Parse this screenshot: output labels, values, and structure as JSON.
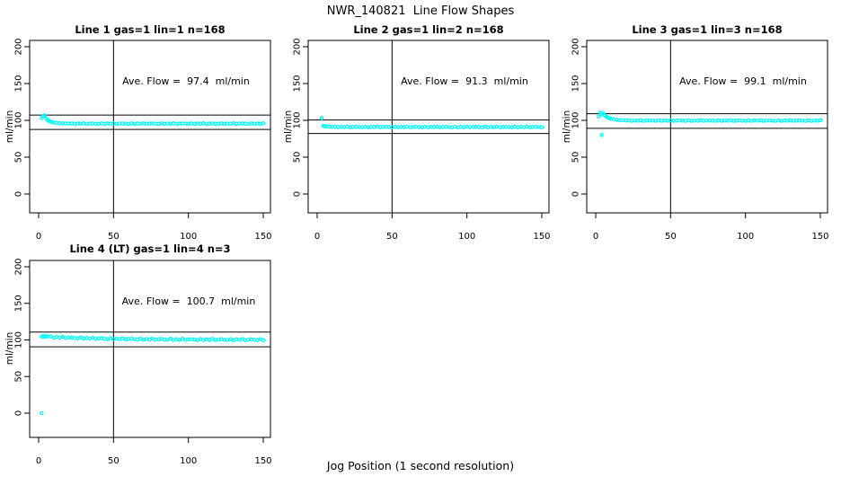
{
  "figure": {
    "title": "NWR_140821  Line Flow Shapes",
    "xlabel": "Jog Position (1 second resolution)",
    "point_color": "#00FFFF",
    "axis_color": "#000000",
    "background": "#FFFFFF"
  },
  "chart_data": [
    {
      "type": "scatter",
      "title": "Line 1 gas=1 lin=1 n=168",
      "annotation": "Ave. Flow =  97.4  ml/min",
      "ave_flow": 97.4,
      "ylabel": "ml/min",
      "vline": 50,
      "hlines": [
        107.1,
        87.7
      ],
      "x_ticks": [
        0,
        50,
        100,
        150
      ],
      "y_ticks": [
        0,
        50,
        100,
        150,
        200
      ],
      "xlim": [
        0,
        150
      ],
      "ylim": [
        0,
        200
      ],
      "points": [
        [
          2,
          103
        ],
        [
          3,
          105.5
        ],
        [
          4,
          106.8
        ],
        [
          5,
          102.5
        ],
        [
          6,
          100.1
        ],
        [
          7,
          99.1
        ],
        [
          8,
          98.3
        ],
        [
          9,
          97.7
        ],
        [
          10,
          97.2
        ],
        [
          12,
          96.6
        ],
        [
          14,
          96.2
        ],
        [
          16,
          96
        ],
        [
          18,
          95.8
        ],
        [
          20,
          95.7
        ],
        [
          22,
          95.9
        ],
        [
          24,
          95.2
        ],
        [
          26,
          95.7
        ],
        [
          28,
          95.4
        ],
        [
          30,
          96
        ],
        [
          32,
          95.3
        ],
        [
          34,
          95.6
        ],
        [
          36,
          95.8
        ],
        [
          38,
          95.5
        ],
        [
          40,
          95.2
        ],
        [
          42,
          95.9
        ],
        [
          44,
          95.2
        ],
        [
          46,
          95.7
        ],
        [
          48,
          95.4
        ],
        [
          50,
          96
        ],
        [
          52,
          95.3
        ],
        [
          54,
          95.6
        ],
        [
          56,
          95.8
        ],
        [
          58,
          95.5
        ],
        [
          60,
          95.2
        ],
        [
          62,
          95.9
        ],
        [
          64,
          95.2
        ],
        [
          66,
          95.7
        ],
        [
          68,
          95.4
        ],
        [
          70,
          96
        ],
        [
          72,
          95.3
        ],
        [
          74,
          95.6
        ],
        [
          76,
          95.8
        ],
        [
          78,
          95.5
        ],
        [
          80,
          95.2
        ],
        [
          82,
          95.9
        ],
        [
          84,
          95.2
        ],
        [
          86,
          95.7
        ],
        [
          88,
          95.4
        ],
        [
          90,
          96
        ],
        [
          92,
          95.3
        ],
        [
          94,
          95.6
        ],
        [
          96,
          95.8
        ],
        [
          98,
          95.5
        ],
        [
          100,
          95.2
        ],
        [
          102,
          95.9
        ],
        [
          104,
          95.2
        ],
        [
          106,
          95.7
        ],
        [
          108,
          95.4
        ],
        [
          110,
          96
        ],
        [
          112,
          95.3
        ],
        [
          114,
          95.6
        ],
        [
          116,
          95.8
        ],
        [
          118,
          95.5
        ],
        [
          120,
          95.2
        ],
        [
          122,
          95.9
        ],
        [
          124,
          95.2
        ],
        [
          126,
          95.7
        ],
        [
          128,
          95.4
        ],
        [
          130,
          96
        ],
        [
          132,
          95.3
        ],
        [
          134,
          95.6
        ],
        [
          136,
          95.8
        ],
        [
          138,
          95.5
        ],
        [
          140,
          95.2
        ],
        [
          142,
          95.9
        ],
        [
          144,
          95.2
        ],
        [
          146,
          95.7
        ],
        [
          148,
          95.4
        ],
        [
          150,
          96
        ]
      ]
    },
    {
      "type": "scatter",
      "title": "Line 2 gas=1 lin=2 n=168",
      "annotation": "Ave. Flow =  91.3  ml/min",
      "ave_flow": 91.3,
      "ylabel": "ml/min",
      "vline": 50,
      "hlines": [
        100.4,
        82.2
      ],
      "x_ticks": [
        0,
        50,
        100,
        150
      ],
      "y_ticks": [
        0,
        50,
        100,
        150,
        200
      ],
      "xlim": [
        0,
        150
      ],
      "ylim": [
        0,
        200
      ],
      "points": [
        [
          3,
          103
        ],
        [
          4,
          92.5
        ],
        [
          5,
          92
        ],
        [
          6,
          91.8
        ],
        [
          8,
          91.4
        ],
        [
          10,
          91.2
        ],
        [
          12,
          91.3
        ],
        [
          14,
          90.6
        ],
        [
          16,
          91.1
        ],
        [
          18,
          90.8
        ],
        [
          20,
          91.4
        ],
        [
          22,
          90.7
        ],
        [
          24,
          91
        ],
        [
          26,
          91.2
        ],
        [
          28,
          90.9
        ],
        [
          30,
          90.6
        ],
        [
          32,
          91.3
        ],
        [
          34,
          90.6
        ],
        [
          36,
          91.1
        ],
        [
          38,
          90.8
        ],
        [
          40,
          91.4
        ],
        [
          42,
          90.7
        ],
        [
          44,
          91
        ],
        [
          46,
          91.2
        ],
        [
          48,
          90.9
        ],
        [
          50,
          90.6
        ],
        [
          52,
          91.3
        ],
        [
          54,
          90.6
        ],
        [
          56,
          91.1
        ],
        [
          58,
          90.8
        ],
        [
          60,
          91.4
        ],
        [
          62,
          90.7
        ],
        [
          64,
          91
        ],
        [
          66,
          91.2
        ],
        [
          68,
          90.9
        ],
        [
          70,
          90.6
        ],
        [
          72,
          91.3
        ],
        [
          74,
          90.6
        ],
        [
          76,
          91.1
        ],
        [
          78,
          90.8
        ],
        [
          80,
          91.4
        ],
        [
          82,
          90.7
        ],
        [
          84,
          91
        ],
        [
          86,
          91.2
        ],
        [
          88,
          90.9
        ],
        [
          90,
          90.6
        ],
        [
          92,
          91.3
        ],
        [
          94,
          90.6
        ],
        [
          96,
          91.1
        ],
        [
          98,
          90.8
        ],
        [
          100,
          91.4
        ],
        [
          102,
          90.7
        ],
        [
          104,
          91
        ],
        [
          106,
          91.2
        ],
        [
          108,
          90.9
        ],
        [
          110,
          90.6
        ],
        [
          112,
          91.3
        ],
        [
          114,
          90.6
        ],
        [
          116,
          91.1
        ],
        [
          118,
          90.8
        ],
        [
          120,
          91.4
        ],
        [
          122,
          90.7
        ],
        [
          124,
          91
        ],
        [
          126,
          91.2
        ],
        [
          128,
          90.9
        ],
        [
          130,
          90.6
        ],
        [
          132,
          91.3
        ],
        [
          134,
          90.6
        ],
        [
          136,
          91.1
        ],
        [
          138,
          90.8
        ],
        [
          140,
          91.4
        ],
        [
          142,
          90.7
        ],
        [
          144,
          91
        ],
        [
          146,
          91.2
        ],
        [
          148,
          90.9
        ],
        [
          150,
          90.6
        ]
      ]
    },
    {
      "type": "scatter",
      "title": "Line 3 gas=1 lin=3 n=168",
      "annotation": "Ave. Flow =  99.1  ml/min",
      "ave_flow": 99.1,
      "ylabel": "ml/min",
      "vline": 50,
      "hlines": [
        109.0,
        89.2
      ],
      "x_ticks": [
        0,
        50,
        100,
        150
      ],
      "y_ticks": [
        0,
        50,
        100,
        150,
        200
      ],
      "xlim": [
        0,
        150
      ],
      "ylim": [
        0,
        200
      ],
      "points": [
        [
          2,
          105
        ],
        [
          3,
          110.5
        ],
        [
          4,
          80
        ],
        [
          4,
          108
        ],
        [
          5,
          109.5
        ],
        [
          6,
          106.5
        ],
        [
          7,
          105
        ],
        [
          8,
          103.8
        ],
        [
          9,
          103
        ],
        [
          10,
          102.3
        ],
        [
          12,
          101.3
        ],
        [
          14,
          100.7
        ],
        [
          16,
          100.3
        ],
        [
          18,
          100.1
        ],
        [
          20,
          99.9
        ],
        [
          22,
          100
        ],
        [
          24,
          99.3
        ],
        [
          26,
          99.8
        ],
        [
          28,
          99.5
        ],
        [
          30,
          100.1
        ],
        [
          32,
          99.4
        ],
        [
          34,
          99.7
        ],
        [
          36,
          99.9
        ],
        [
          38,
          99.6
        ],
        [
          40,
          99.3
        ],
        [
          42,
          100
        ],
        [
          44,
          99.3
        ],
        [
          46,
          99.8
        ],
        [
          48,
          99.5
        ],
        [
          50,
          100.1
        ],
        [
          52,
          99.4
        ],
        [
          54,
          99.7
        ],
        [
          56,
          99.9
        ],
        [
          58,
          99.6
        ],
        [
          60,
          99.3
        ],
        [
          62,
          100
        ],
        [
          64,
          99.3
        ],
        [
          66,
          99.8
        ],
        [
          68,
          99.5
        ],
        [
          70,
          100.1
        ],
        [
          72,
          99.4
        ],
        [
          74,
          99.7
        ],
        [
          76,
          99.9
        ],
        [
          78,
          99.6
        ],
        [
          80,
          99.3
        ],
        [
          82,
          100
        ],
        [
          84,
          99.3
        ],
        [
          86,
          99.8
        ],
        [
          88,
          99.5
        ],
        [
          90,
          100.1
        ],
        [
          92,
          99.4
        ],
        [
          94,
          99.7
        ],
        [
          96,
          99.9
        ],
        [
          98,
          99.6
        ],
        [
          100,
          99.3
        ],
        [
          102,
          100
        ],
        [
          104,
          99.3
        ],
        [
          106,
          99.8
        ],
        [
          108,
          99.5
        ],
        [
          110,
          100.1
        ],
        [
          112,
          99.4
        ],
        [
          114,
          99.7
        ],
        [
          116,
          99.9
        ],
        [
          118,
          99.6
        ],
        [
          120,
          99.3
        ],
        [
          122,
          100
        ],
        [
          124,
          99.3
        ],
        [
          126,
          99.8
        ],
        [
          128,
          99.5
        ],
        [
          130,
          100.1
        ],
        [
          132,
          99.4
        ],
        [
          134,
          99.7
        ],
        [
          136,
          99.9
        ],
        [
          138,
          99.6
        ],
        [
          140,
          99.3
        ],
        [
          142,
          100
        ],
        [
          144,
          99.3
        ],
        [
          146,
          99.8
        ],
        [
          148,
          99.5
        ],
        [
          150,
          100.1
        ]
      ]
    },
    {
      "type": "scatter",
      "title": "Line 4 (LT) gas=1 lin=4 n=3",
      "annotation": "Ave. Flow =  100.7  ml/min",
      "ave_flow": 100.7,
      "ylabel": "ml/min",
      "vline": 50,
      "hlines": [
        110.8,
        90.6
      ],
      "x_ticks": [
        0,
        50,
        100,
        150
      ],
      "y_ticks": [
        0,
        50,
        100,
        150,
        200
      ],
      "xlim": [
        0,
        150
      ],
      "ylim": [
        0,
        200
      ],
      "points": [
        [
          2,
          0
        ],
        [
          2,
          104.6
        ],
        [
          3,
          105.3
        ],
        [
          4,
          104.2
        ],
        [
          5,
          105
        ],
        [
          6,
          104.8
        ],
        [
          8,
          104.8
        ],
        [
          10,
          103.2
        ],
        [
          12,
          104
        ],
        [
          14,
          103.1
        ],
        [
          16,
          104.3
        ],
        [
          18,
          102.7
        ],
        [
          20,
          103.2
        ],
        [
          22,
          103.4
        ],
        [
          24,
          102.6
        ],
        [
          26,
          102.1
        ],
        [
          28,
          103.3
        ],
        [
          30,
          101.8
        ],
        [
          32,
          102.7
        ],
        [
          34,
          101.9
        ],
        [
          36,
          103.1
        ],
        [
          38,
          101.6
        ],
        [
          40,
          102.1
        ],
        [
          42,
          102.4
        ],
        [
          44,
          101.6
        ],
        [
          46,
          101.1
        ],
        [
          48,
          102.4
        ],
        [
          50,
          100.9
        ],
        [
          52,
          101.8
        ],
        [
          54,
          101.1
        ],
        [
          56,
          102.3
        ],
        [
          58,
          100.9
        ],
        [
          60,
          101.4
        ],
        [
          62,
          101.8
        ],
        [
          64,
          101
        ],
        [
          66,
          100.6
        ],
        [
          68,
          101.8
        ],
        [
          70,
          100.4
        ],
        [
          72,
          101.4
        ],
        [
          74,
          100.6
        ],
        [
          76,
          101.9
        ],
        [
          78,
          100.4
        ],
        [
          80,
          101
        ],
        [
          82,
          101.4
        ],
        [
          84,
          100.6
        ],
        [
          86,
          100.2
        ],
        [
          88,
          101.5
        ],
        [
          90,
          100
        ],
        [
          92,
          101
        ],
        [
          94,
          100.3
        ],
        [
          96,
          101.6
        ],
        [
          98,
          100.1
        ],
        [
          100,
          100.8
        ],
        [
          102,
          101.1
        ],
        [
          104,
          100.4
        ],
        [
          106,
          100
        ],
        [
          108,
          101.2
        ],
        [
          110,
          99.9
        ],
        [
          112,
          100.9
        ],
        [
          114,
          100.2
        ],
        [
          116,
          101.4
        ],
        [
          118,
          99.9
        ],
        [
          120,
          100.7
        ],
        [
          122,
          101
        ],
        [
          124,
          100.3
        ],
        [
          126,
          99.9
        ],
        [
          128,
          101.1
        ],
        [
          130,
          99.8
        ],
        [
          132,
          100.8
        ],
        [
          134,
          100.1
        ],
        [
          136,
          101.3
        ],
        [
          138,
          99.8
        ],
        [
          140,
          100.6
        ],
        [
          142,
          100.9
        ],
        [
          144,
          100.2
        ],
        [
          146,
          99.8
        ],
        [
          148,
          101
        ],
        [
          150,
          99.7
        ]
      ]
    }
  ]
}
